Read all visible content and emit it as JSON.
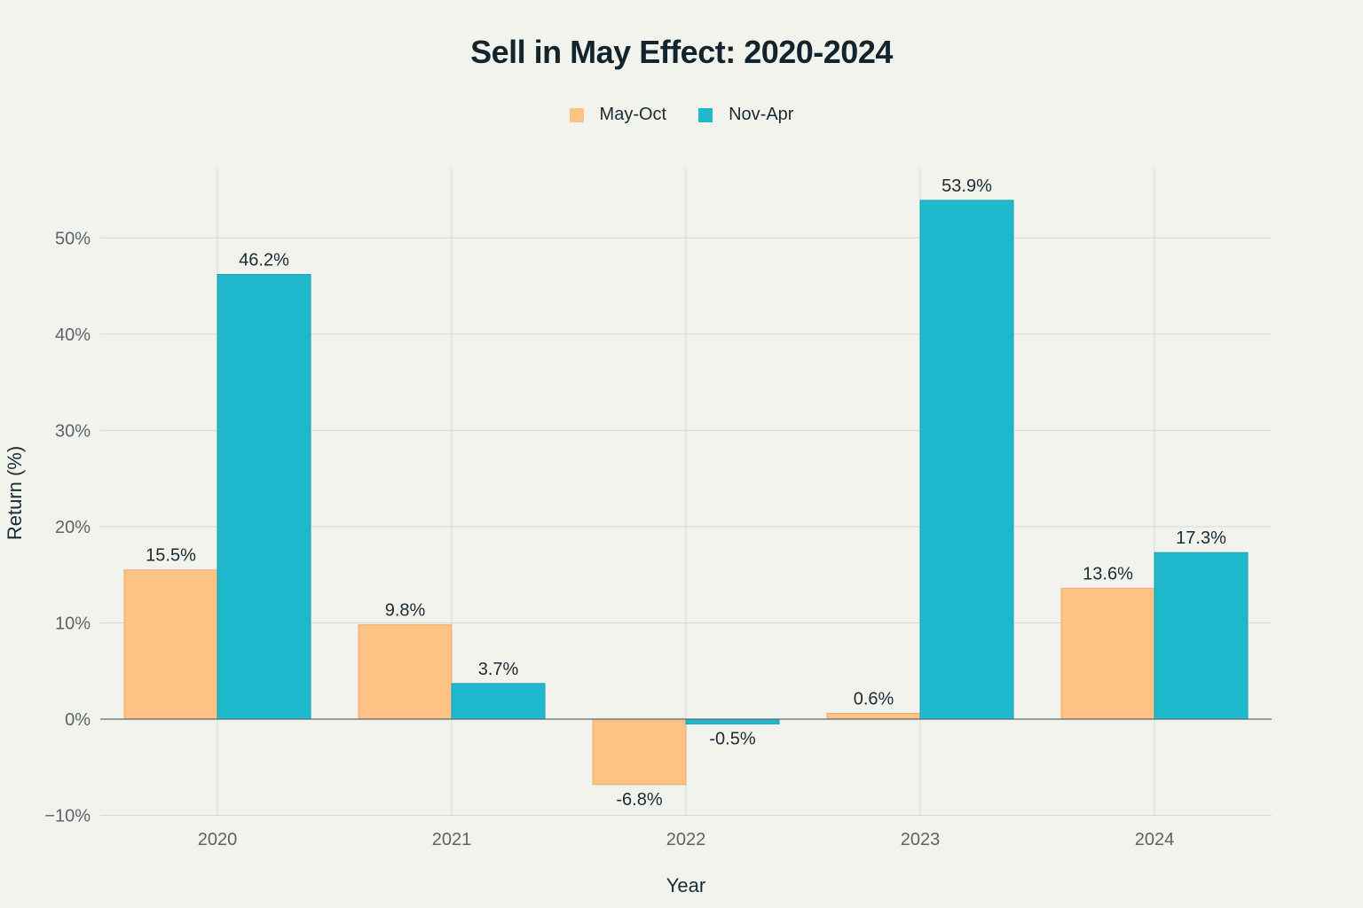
{
  "chart_data": {
    "type": "bar",
    "title": "Sell in May Effect: 2020-2024",
    "xlabel": "Year",
    "ylabel": "Return (%)",
    "categories": [
      "2020",
      "2021",
      "2022",
      "2023",
      "2024"
    ],
    "series": [
      {
        "name": "May-Oct",
        "color": "#ffc285",
        "values": [
          15.5,
          9.8,
          -6.8,
          0.6,
          13.6
        ],
        "labels": [
          "15.5%",
          "9.8%",
          "-6.8%",
          "0.6%",
          "13.6%"
        ]
      },
      {
        "name": "Nov-Apr",
        "color": "#1fb8cd",
        "values": [
          46.2,
          3.7,
          -0.5,
          53.9,
          17.3
        ],
        "labels": [
          "46.2%",
          "3.7%",
          "-0.5%",
          "53.9%",
          "17.3%"
        ]
      }
    ],
    "ylim": [
      -10,
      57
    ],
    "yticks": [
      -10,
      0,
      10,
      20,
      30,
      40,
      50
    ],
    "ytick_labels": [
      "−10%",
      "0%",
      "10%",
      "20%",
      "30%",
      "40%",
      "50%"
    ],
    "legend_position": "top-center",
    "grid": true
  }
}
